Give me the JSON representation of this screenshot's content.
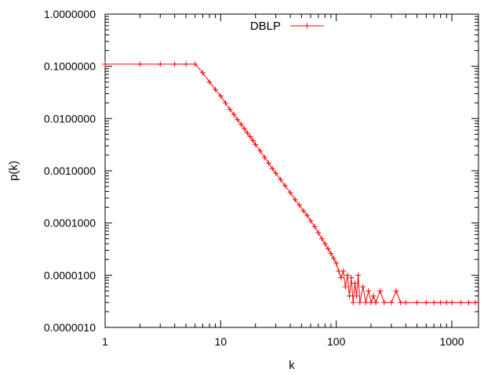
{
  "chart_data": {
    "type": "line",
    "xlabel": "k",
    "ylabel": "p(k)",
    "x_scale": "log",
    "y_scale": "log",
    "xlim": [
      1,
      1700
    ],
    "ylim": [
      1e-06,
      1
    ],
    "grid": false,
    "legend_position": "top-center",
    "x_ticks": [
      {
        "value": 1,
        "label": "1"
      },
      {
        "value": 10,
        "label": "10"
      },
      {
        "value": 100,
        "label": "100"
      },
      {
        "value": 1000,
        "label": "1000"
      }
    ],
    "y_ticks": [
      {
        "value": 1,
        "label": "1.0000000"
      },
      {
        "value": 0.1,
        "label": "0.1000000"
      },
      {
        "value": 0.01,
        "label": "0.0100000"
      },
      {
        "value": 0.001,
        "label": "0.0010000"
      },
      {
        "value": 0.0001,
        "label": "0.0001000"
      },
      {
        "value": 1e-05,
        "label": "0.0000100"
      },
      {
        "value": 1e-06,
        "label": "0.0000010"
      }
    ],
    "series": [
      {
        "name": "DBLP",
        "color": "#ff0000",
        "marker": "plus",
        "points": [
          [
            1,
            0.11
          ],
          [
            2,
            0.11
          ],
          [
            3,
            0.11
          ],
          [
            4,
            0.11
          ],
          [
            5,
            0.11
          ],
          [
            6,
            0.11
          ],
          [
            7,
            0.075
          ],
          [
            8,
            0.05
          ],
          [
            9,
            0.036
          ],
          [
            10,
            0.027
          ],
          [
            11,
            0.02
          ],
          [
            12,
            0.015
          ],
          [
            13,
            0.012
          ],
          [
            14,
            0.0095
          ],
          [
            15,
            0.0078
          ],
          [
            16,
            0.0064
          ],
          [
            17,
            0.0053
          ],
          [
            18,
            0.0045
          ],
          [
            19,
            0.0038
          ],
          [
            20,
            0.0032
          ],
          [
            22,
            0.0024
          ],
          [
            24,
            0.0018
          ],
          [
            26,
            0.0014
          ],
          [
            28,
            0.0011
          ],
          [
            30,
            0.0009
          ],
          [
            33,
            0.00068
          ],
          [
            36,
            0.00052
          ],
          [
            40,
            0.00038
          ],
          [
            44,
            0.00028
          ],
          [
            48,
            0.00022
          ],
          [
            52,
            0.00017
          ],
          [
            56,
            0.00014
          ],
          [
            60,
            0.00011
          ],
          [
            65,
            8.5e-05
          ],
          [
            70,
            6.5e-05
          ],
          [
            75,
            5e-05
          ],
          [
            80,
            4e-05
          ],
          [
            85,
            3.2e-05
          ],
          [
            90,
            2.6e-05
          ],
          [
            95,
            2.1e-05
          ],
          [
            100,
            1.7e-05
          ],
          [
            105,
            1.2e-05
          ],
          [
            110,
            9e-06
          ],
          [
            115,
            1.2e-05
          ],
          [
            120,
            6e-06
          ],
          [
            125,
            1e-05
          ],
          [
            130,
            4e-06
          ],
          [
            135,
            9e-06
          ],
          [
            140,
            3e-06
          ],
          [
            145,
            7e-06
          ],
          [
            150,
            4e-06
          ],
          [
            155,
            1e-05
          ],
          [
            160,
            3e-06
          ],
          [
            170,
            6e-06
          ],
          [
            180,
            3e-06
          ],
          [
            190,
            5e-06
          ],
          [
            200,
            3e-06
          ],
          [
            210,
            4e-06
          ],
          [
            220,
            3e-06
          ],
          [
            240,
            5e-06
          ],
          [
            260,
            3e-06
          ],
          [
            300,
            3e-06
          ],
          [
            330,
            5e-06
          ],
          [
            360,
            3e-06
          ],
          [
            400,
            3e-06
          ],
          [
            500,
            3e-06
          ],
          [
            600,
            3e-06
          ],
          [
            700,
            3e-06
          ],
          [
            800,
            3e-06
          ],
          [
            900,
            3e-06
          ],
          [
            1000,
            3e-06
          ],
          [
            1200,
            3e-06
          ],
          [
            1400,
            3e-06
          ],
          [
            1600,
            3e-06
          ]
        ]
      }
    ]
  }
}
